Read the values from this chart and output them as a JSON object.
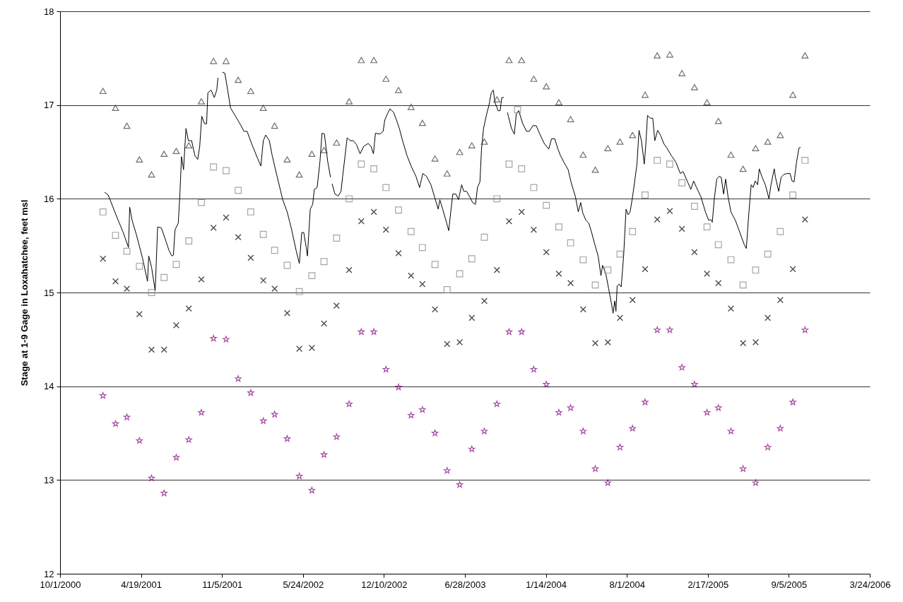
{
  "chart_data": {
    "type": "scatter",
    "ylabel": "Stage at 1-9 Gage in Loxahatchee, feet msl",
    "x": [
      "2001-01-15",
      "2001-02-15",
      "2001-03-15",
      "2001-04-15",
      "2001-05-15",
      "2001-06-15",
      "2001-07-15",
      "2001-08-15",
      "2001-09-15",
      "2001-10-15",
      "2001-11-15",
      "2001-12-15",
      "2002-01-15",
      "2002-02-15",
      "2002-03-15",
      "2002-04-15",
      "2002-05-15",
      "2002-06-15",
      "2002-07-15",
      "2002-08-15",
      "2002-09-15",
      "2002-10-15",
      "2002-11-15",
      "2002-12-15",
      "2003-01-15",
      "2003-02-15",
      "2003-03-15",
      "2003-04-15",
      "2003-05-15",
      "2003-06-15",
      "2003-07-15",
      "2003-08-15",
      "2003-09-15",
      "2003-10-15",
      "2003-11-15",
      "2003-12-15",
      "2004-01-15",
      "2004-02-15",
      "2004-03-15",
      "2004-04-15",
      "2004-05-15",
      "2004-06-15",
      "2004-07-15",
      "2004-08-15",
      "2004-09-15",
      "2004-10-15",
      "2004-11-15",
      "2004-12-15",
      "2005-01-15",
      "2005-02-15",
      "2005-03-15",
      "2005-04-15",
      "2005-05-15",
      "2005-06-15",
      "2005-07-15",
      "2005-08-15",
      "2005-09-15",
      "2005-10-15"
    ],
    "series": [
      {
        "type": "scatter",
        "marker": "triangle",
        "color": "#333333",
        "values": [
          17.15,
          16.97,
          16.78,
          16.42,
          16.26,
          16.48,
          16.51,
          16.57,
          17.04,
          17.47,
          17.47,
          17.27,
          17.15,
          16.97,
          16.78,
          16.42,
          16.26,
          16.48,
          16.52,
          16.6,
          17.04,
          17.48,
          17.48,
          17.28,
          17.16,
          16.98,
          16.81,
          16.43,
          16.27,
          16.5,
          16.57,
          16.61,
          17.06,
          17.48,
          17.48,
          17.28,
          17.2,
          17.03,
          16.85,
          16.47,
          16.31,
          16.54,
          16.61,
          16.68,
          17.11,
          17.53,
          17.54,
          17.34,
          17.19,
          17.03,
          16.83,
          16.47,
          16.32,
          16.54,
          16.61,
          16.68,
          17.11,
          17.53
        ]
      },
      {
        "type": "scatter",
        "marker": "square",
        "color": "#808080",
        "x": [
          "2001-01-15",
          "2001-02-15",
          "2001-03-15",
          "2001-04-15",
          "2001-05-15",
          "2001-06-15",
          "2001-07-15",
          "2001-08-15",
          "2001-09-15",
          "2001-10-15",
          "2001-11-15",
          "2001-12-15",
          "2002-01-15",
          "2002-02-15",
          "2002-03-15",
          "2002-04-15",
          "2002-05-15",
          "2002-06-15",
          "2002-07-15",
          "2002-08-15",
          "2002-09-15",
          "2002-10-15",
          "2002-11-15",
          "2002-12-15",
          "2003-01-15",
          "2003-02-15",
          "2003-03-15",
          "2003-04-15",
          "2003-05-15",
          "2003-06-15",
          "2003-07-15",
          "2003-08-15",
          "2003-09-15",
          "2003-10-15",
          "2003-11-05",
          "2003-11-15",
          "2003-12-15",
          "2004-01-15",
          "2004-02-15",
          "2004-03-15",
          "2004-04-15",
          "2004-05-15",
          "2004-06-15",
          "2004-07-15",
          "2004-08-15",
          "2004-09-15",
          "2004-10-15",
          "2004-11-15",
          "2004-12-15",
          "2005-01-15",
          "2005-02-15",
          "2005-03-15",
          "2005-04-15",
          "2005-05-15",
          "2005-06-15",
          "2005-07-15",
          "2005-08-15",
          "2005-09-15",
          "2005-10-15"
        ],
        "values": [
          15.86,
          15.61,
          15.44,
          15.28,
          15.0,
          15.16,
          15.3,
          15.55,
          15.96,
          16.34,
          16.3,
          16.09,
          15.86,
          15.62,
          15.45,
          15.29,
          15.01,
          15.18,
          15.33,
          15.58,
          16.0,
          16.37,
          16.32,
          16.12,
          15.88,
          15.65,
          15.48,
          15.3,
          15.03,
          15.2,
          15.36,
          15.59,
          16.0,
          16.37,
          16.95,
          16.32,
          16.12,
          15.93,
          15.7,
          15.53,
          15.35,
          15.08,
          15.24,
          15.41,
          15.65,
          16.04,
          16.41,
          16.37,
          16.17,
          15.92,
          15.7,
          15.51,
          15.35,
          15.08,
          15.24,
          15.41,
          15.65,
          16.04,
          16.41
        ]
      },
      {
        "type": "scatter",
        "marker": "cross",
        "color": "#000000",
        "values": [
          15.36,
          15.12,
          15.04,
          14.77,
          14.39,
          14.39,
          14.65,
          14.83,
          15.14,
          15.69,
          15.8,
          15.59,
          15.37,
          15.13,
          15.04,
          14.78,
          14.4,
          14.41,
          14.67,
          14.86,
          15.24,
          15.76,
          15.86,
          15.67,
          15.42,
          15.18,
          15.09,
          14.82,
          14.45,
          14.47,
          14.73,
          14.91,
          15.24,
          15.76,
          15.86,
          15.67,
          15.43,
          15.2,
          15.1,
          14.82,
          14.46,
          14.47,
          14.73,
          14.92,
          15.25,
          15.78,
          15.87,
          15.68,
          15.43,
          15.2,
          15.1,
          14.83,
          14.46,
          14.47,
          14.73,
          14.92,
          15.25,
          15.78
        ]
      },
      {
        "type": "scatter",
        "marker": "star",
        "color": "#800080",
        "values": [
          13.9,
          13.6,
          13.67,
          13.42,
          13.02,
          12.86,
          13.24,
          13.43,
          13.72,
          14.51,
          14.5,
          14.08,
          13.93,
          13.63,
          13.7,
          13.44,
          13.04,
          12.89,
          13.27,
          13.46,
          13.81,
          14.58,
          14.58,
          14.18,
          13.99,
          13.69,
          13.75,
          13.5,
          13.1,
          12.95,
          13.33,
          13.52,
          13.81,
          14.58,
          14.58,
          14.18,
          14.02,
          13.72,
          13.77,
          13.52,
          13.12,
          12.97,
          13.35,
          13.55,
          13.83,
          14.6,
          14.6,
          14.2,
          14.02,
          13.72,
          13.77,
          13.52,
          13.12,
          12.97,
          13.35,
          13.55,
          13.83,
          14.6
        ]
      },
      {
        "type": "line",
        "color": "#000000",
        "x": [
          "2001-01-19",
          "2001-01-28",
          "2001-02-16",
          "2001-03-06",
          "2001-03-19",
          "2001-03-22",
          "2001-03-28",
          "2001-04-08",
          "2001-04-23",
          "2001-05-05",
          "2001-05-08",
          "2001-05-15",
          "2001-05-24",
          "2001-05-30",
          "2001-06-08",
          "2001-06-17",
          "2001-06-27",
          "2001-07-04",
          "2001-07-08",
          "2001-07-12",
          "2001-07-20",
          "2001-07-24",
          "2001-07-28",
          "2001-08-02",
          "2001-08-08",
          "2001-08-14",
          "2001-08-22",
          "2001-08-30",
          "2001-09-06",
          "2001-09-11",
          "2001-09-16",
          "2001-09-23",
          "2001-09-28",
          "2001-10-01",
          "2001-10-09",
          "2001-10-17",
          "2001-10-23",
          "2001-10-26",
          "2001-11-01",
          "2001-11-06",
          "2001-11-12",
          "2001-11-19",
          "2001-11-26",
          "2001-12-07",
          "2001-12-22",
          "2001-12-29",
          "2002-01-06",
          "2002-01-17",
          "2002-02-01",
          "2002-02-09",
          "2002-02-15",
          "2002-02-21",
          "2002-03-02",
          "2002-03-09",
          "2002-03-21",
          "2002-04-04",
          "2002-04-15",
          "2002-04-26",
          "2002-05-07",
          "2002-05-15",
          "2002-05-21",
          "2002-05-26",
          "2002-06-01",
          "2002-06-04",
          "2002-06-11",
          "2002-06-17",
          "2002-06-21",
          "2002-06-28",
          "2002-07-05",
          "2002-07-10",
          "2002-07-16",
          "2002-07-24",
          "2002-07-31",
          "2002-08-02",
          "2002-08-04",
          "2002-08-11",
          "2002-08-19",
          "2002-08-26",
          "2002-08-30",
          "2002-09-05",
          "2002-09-10",
          "2002-09-18",
          "2002-09-25",
          "2002-10-03",
          "2002-10-12",
          "2002-10-21",
          "2002-11-01",
          "2002-11-08",
          "2002-11-14",
          "2002-11-19",
          "2002-11-30",
          "2002-12-08",
          "2002-12-12",
          "2002-12-19",
          "2002-12-25",
          "2003-01-03",
          "2003-01-10",
          "2003-01-17",
          "2003-01-25",
          "2003-02-05",
          "2003-02-16",
          "2003-02-27",
          "2003-03-08",
          "2003-03-16",
          "2003-03-25",
          "2003-04-05",
          "2003-04-14",
          "2003-04-23",
          "2003-04-27",
          "2003-05-04",
          "2003-05-12",
          "2003-05-19",
          "2003-05-24",
          "2003-05-29",
          "2003-06-06",
          "2003-06-12",
          "2003-06-20",
          "2003-06-25",
          "2003-07-02",
          "2003-07-10",
          "2003-07-17",
          "2003-07-24",
          "2003-07-29",
          "2003-08-04",
          "2003-08-08",
          "2003-08-13",
          "2003-08-21",
          "2003-08-26",
          "2003-09-01",
          "2003-09-06",
          "2003-09-10",
          "2003-09-18",
          "2003-09-23",
          "2003-09-27",
          "2003-10-02",
          "2003-10-06",
          "2003-10-11",
          "2003-10-21",
          "2003-10-28",
          "2003-11-02",
          "2003-11-08",
          "2003-11-17",
          "2003-11-27",
          "2003-12-04",
          "2003-12-13",
          "2003-12-21",
          "2003-12-30",
          "2004-01-10",
          "2004-01-21",
          "2004-01-28",
          "2004-02-05",
          "2004-02-12",
          "2004-02-19",
          "2004-03-01",
          "2004-03-09",
          "2004-03-16",
          "2004-03-27",
          "2004-04-03",
          "2004-04-09",
          "2004-04-14",
          "2004-04-22",
          "2004-04-29",
          "2004-05-06",
          "2004-05-14",
          "2004-05-22",
          "2004-05-29",
          "2004-06-02",
          "2004-06-10",
          "2004-06-17",
          "2004-06-24",
          "2004-06-28",
          "2004-07-02",
          "2004-07-05",
          "2004-07-08",
          "2004-07-13",
          "2004-07-18",
          "2004-07-24",
          "2004-07-30",
          "2004-08-04",
          "2004-08-09",
          "2004-08-15",
          "2004-08-21",
          "2004-08-26",
          "2004-08-31",
          "2004-09-06",
          "2004-09-13",
          "2004-09-17",
          "2004-09-21",
          "2004-09-28",
          "2004-10-04",
          "2004-10-09",
          "2004-10-16",
          "2004-10-24",
          "2004-10-31",
          "2004-11-08",
          "2004-11-19",
          "2004-11-30",
          "2004-12-11",
          "2004-12-18",
          "2004-12-29",
          "2005-01-06",
          "2005-01-13",
          "2005-01-20",
          "2005-01-31",
          "2005-02-11",
          "2005-02-19",
          "2005-02-24",
          "2005-02-28",
          "2005-03-05",
          "2005-03-11",
          "2005-03-17",
          "2005-03-22",
          "2005-03-28",
          "2005-04-02",
          "2005-04-08",
          "2005-04-15",
          "2005-04-26",
          "2005-05-07",
          "2005-05-18",
          "2005-05-23",
          "2005-05-29",
          "2005-06-04",
          "2005-06-09",
          "2005-06-14",
          "2005-06-20",
          "2005-06-24",
          "2005-07-01",
          "2005-07-09",
          "2005-07-18",
          "2005-07-23",
          "2005-07-31",
          "2005-08-03",
          "2005-08-11",
          "2005-08-17",
          "2005-08-24",
          "2005-09-01",
          "2005-09-08",
          "2005-09-13",
          "2005-09-18",
          "2005-09-24",
          "2005-09-30",
          "2005-10-04"
        ],
        "values": [
          16.07,
          16.04,
          15.83,
          15.64,
          15.48,
          15.91,
          15.77,
          15.61,
          15.36,
          15.12,
          15.39,
          15.27,
          15.02,
          15.7,
          15.69,
          15.58,
          15.45,
          15.39,
          15.4,
          15.67,
          15.74,
          16.05,
          16.45,
          16.31,
          16.75,
          16.62,
          16.62,
          16.46,
          16.42,
          16.56,
          16.88,
          16.8,
          16.8,
          17.13,
          17.16,
          17.08,
          17.16,
          17.29,
          null,
          17.35,
          17.34,
          17.16,
          16.97,
          16.89,
          16.78,
          16.72,
          16.72,
          16.59,
          16.43,
          16.35,
          16.62,
          16.68,
          16.62,
          16.46,
          16.24,
          15.99,
          15.86,
          15.67,
          15.45,
          15.31,
          15.64,
          15.64,
          15.48,
          15.39,
          15.89,
          15.94,
          16.1,
          16.12,
          16.4,
          16.7,
          16.69,
          16.4,
          16.23,
          null,
          16.16,
          16.05,
          16.03,
          16.08,
          16.24,
          16.46,
          16.65,
          16.62,
          16.62,
          16.58,
          16.48,
          16.56,
          16.59,
          16.56,
          16.48,
          16.7,
          16.69,
          16.72,
          16.84,
          16.91,
          16.96,
          16.92,
          16.84,
          16.75,
          16.62,
          16.46,
          16.34,
          16.24,
          16.12,
          16.27,
          16.24,
          16.15,
          16.02,
          15.89,
          15.99,
          15.89,
          15.77,
          15.66,
          15.86,
          16.05,
          16.05,
          15.99,
          16.15,
          16.08,
          16.08,
          16.02,
          15.96,
          15.94,
          16.12,
          16.18,
          16.53,
          16.75,
          16.91,
          16.99,
          17.13,
          17.16,
          17.03,
          16.94,
          16.94,
          17.08,
          17.08,
          null,
          16.92,
          16.75,
          16.69,
          16.91,
          16.94,
          16.81,
          16.72,
          16.72,
          16.78,
          16.78,
          16.69,
          16.59,
          16.53,
          16.64,
          16.64,
          16.54,
          16.46,
          16.37,
          16.31,
          16.18,
          16.02,
          15.86,
          15.96,
          15.85,
          15.77,
          15.74,
          15.64,
          15.51,
          15.39,
          15.18,
          15.29,
          15.2,
          15.04,
          14.88,
          14.78,
          14.91,
          14.8,
          15.07,
          15.09,
          15.06,
          15.39,
          15.89,
          15.83,
          15.86,
          16.02,
          16.21,
          16.37,
          16.73,
          16.62,
          16.37,
          16.59,
          16.89,
          16.86,
          16.86,
          16.62,
          16.73,
          16.67,
          16.59,
          16.54,
          16.46,
          16.39,
          16.27,
          16.29,
          16.18,
          16.1,
          16.19,
          16.12,
          16.02,
          15.86,
          15.77,
          15.78,
          15.75,
          16.0,
          16.21,
          16.24,
          16.23,
          16.05,
          16.21,
          16.02,
          15.86,
          15.77,
          15.64,
          15.51,
          15.47,
          15.83,
          16.15,
          16.12,
          16.19,
          16.15,
          16.32,
          16.23,
          16.15,
          16.0,
          16.15,
          16.32,
          16.23,
          16.08,
          16.23,
          16.26,
          16.27,
          16.27,
          16.19,
          16.18,
          16.39,
          16.54,
          16.55
        ]
      }
    ],
    "xlim": [
      "2000-10-01",
      "2006-03-24"
    ],
    "xticks": [
      {
        "value": "2000-10-01",
        "label": "10/1/2000"
      },
      {
        "value": "2001-04-19",
        "label": "4/19/2001"
      },
      {
        "value": "2001-11-05",
        "label": "11/5/2001"
      },
      {
        "value": "2002-05-24",
        "label": "5/24/2002"
      },
      {
        "value": "2002-12-10",
        "label": "12/10/2002"
      },
      {
        "value": "2003-06-28",
        "label": "6/28/2003"
      },
      {
        "value": "2004-01-14",
        "label": "1/14/2004"
      },
      {
        "value": "2004-08-01",
        "label": "8/1/2004"
      },
      {
        "value": "2005-02-17",
        "label": "2/17/2005"
      },
      {
        "value": "2005-09-05",
        "label": "9/5/2005"
      },
      {
        "value": "2006-03-24",
        "label": "3/24/2006"
      }
    ],
    "ylim": [
      12,
      18
    ],
    "yticks": [
      12,
      13,
      14,
      15,
      16,
      17,
      18
    ],
    "grid": "y"
  }
}
